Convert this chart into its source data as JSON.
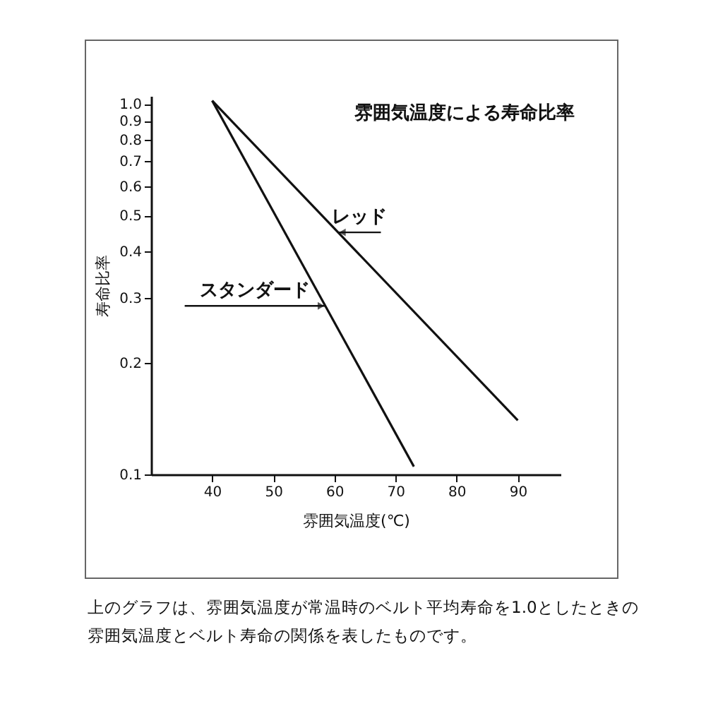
{
  "chart_data": {
    "type": "line",
    "title": "雰囲気温度による寿命比率",
    "xlabel": "雰囲気温度(℃)",
    "ylabel": "寿命比率",
    "series": [
      {
        "color": "#111111",
        "x": [
          40,
          73
        ],
        "values": [
          1.02,
          0.105
        ]
      },
      {
        "color": "#111111",
        "x": [
          40,
          90
        ],
        "values": [
          1.02,
          0.14
        ]
      }
    ],
    "xlim": [
      30,
      97
    ],
    "xticks": [
      40,
      50,
      60,
      70,
      80,
      90
    ],
    "ylim": [
      0.1,
      1.05
    ],
    "yticks": [
      {
        "value": 0.1,
        "label": "0.1"
      },
      {
        "value": 0.2,
        "label": "0.2"
      },
      {
        "value": 0.3,
        "label": "0.3"
      },
      {
        "value": 0.4,
        "label": "0.4"
      },
      {
        "value": 0.5,
        "label": "0.5"
      },
      {
        "value": 0.6,
        "label": "0.6"
      },
      {
        "value": 0.7,
        "label": "0.7"
      },
      {
        "value": 0.8,
        "label": "0.8"
      },
      {
        "value": 0.9,
        "label": "0.9"
      },
      {
        "value": 1.0,
        "label": "1.0"
      }
    ],
    "log": "y",
    "grid": false,
    "marker": "none",
    "line_style": "solid",
    "annotations": [
      {
        "text": "スタンダード",
        "x": 58.5,
        "y": 0.285
      },
      {
        "text": "レッド",
        "x": 60.6,
        "y": 0.45
      },
      "上のグラフは、雰囲気温度が常温時のベルト平均寿命を1.0としたときの雰囲気温度とベルト寿命の関係を表したものです。"
    ]
  }
}
